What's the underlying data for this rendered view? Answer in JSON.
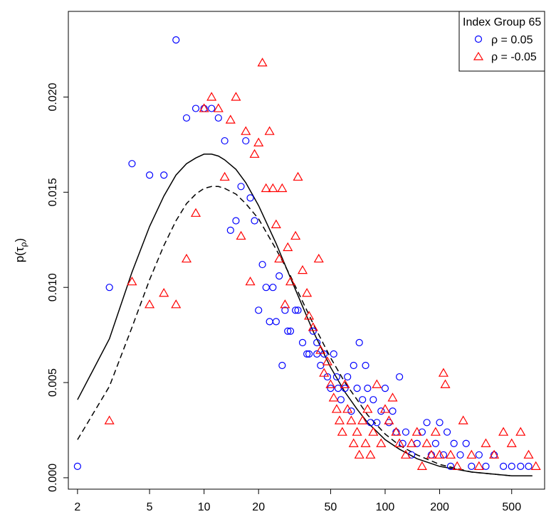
{
  "chart_data": {
    "type": "scatter",
    "title": "",
    "xlabel": "",
    "ylabel": "p(τ_ρ)",
    "x_scale": "log",
    "xlim": [
      1.78,
      760
    ],
    "ylim": [
      -0.0006,
      0.0245
    ],
    "x_ticks": [
      2,
      5,
      10,
      20,
      50,
      100,
      200,
      500
    ],
    "x_tick_labels": [
      "2",
      "5",
      "10",
      "20",
      "50",
      "100",
      "200",
      "500"
    ],
    "y_ticks": [
      0.0,
      0.005,
      0.01,
      0.015,
      0.02
    ],
    "y_tick_labels": [
      "0.000",
      "0.005",
      "0.010",
      "0.015",
      "0.020"
    ],
    "grid": false,
    "legend": {
      "title": "Index Group 65",
      "placement": "top-right",
      "entries": [
        {
          "label": "ρ = 0.05",
          "marker": "circle",
          "color": "#0000ff"
        },
        {
          "label": "ρ = -0.05",
          "marker": "triangle",
          "color": "#ff0000"
        }
      ]
    },
    "series": [
      {
        "name": "ρ = 0.05",
        "marker": "circle",
        "color": "#0000ff",
        "points": [
          [
            2,
            0.0006
          ],
          [
            3,
            0.01
          ],
          [
            4,
            0.0165
          ],
          [
            5,
            0.0159
          ],
          [
            6,
            0.0159
          ],
          [
            7,
            0.023
          ],
          [
            8,
            0.0189
          ],
          [
            9,
            0.0194
          ],
          [
            10,
            0.0194
          ],
          [
            11,
            0.0194
          ],
          [
            12,
            0.0189
          ],
          [
            13,
            0.0177
          ],
          [
            14,
            0.013
          ],
          [
            15,
            0.0135
          ],
          [
            16,
            0.0153
          ],
          [
            17,
            0.0177
          ],
          [
            18,
            0.0147
          ],
          [
            19,
            0.0135
          ],
          [
            20,
            0.0088
          ],
          [
            21,
            0.0112
          ],
          [
            22,
            0.01
          ],
          [
            23,
            0.0082
          ],
          [
            24,
            0.01
          ],
          [
            25,
            0.0082
          ],
          [
            26,
            0.0106
          ],
          [
            27,
            0.0059
          ],
          [
            28,
            0.0088
          ],
          [
            29,
            0.0077
          ],
          [
            30,
            0.0077
          ],
          [
            32,
            0.0088
          ],
          [
            33,
            0.0088
          ],
          [
            35,
            0.0071
          ],
          [
            37,
            0.0065
          ],
          [
            38,
            0.0065
          ],
          [
            40,
            0.0077
          ],
          [
            42,
            0.0071
          ],
          [
            42,
            0.0065
          ],
          [
            44,
            0.0059
          ],
          [
            46,
            0.0065
          ],
          [
            48,
            0.0053
          ],
          [
            50,
            0.0047
          ],
          [
            52,
            0.0065
          ],
          [
            54,
            0.0053
          ],
          [
            55,
            0.0047
          ],
          [
            57,
            0.0041
          ],
          [
            60,
            0.0047
          ],
          [
            62,
            0.0053
          ],
          [
            65,
            0.0035
          ],
          [
            67,
            0.0059
          ],
          [
            70,
            0.0047
          ],
          [
            72,
            0.0071
          ],
          [
            75,
            0.0041
          ],
          [
            78,
            0.0059
          ],
          [
            80,
            0.0047
          ],
          [
            83,
            0.0029
          ],
          [
            86,
            0.0041
          ],
          [
            90,
            0.0029
          ],
          [
            95,
            0.0035
          ],
          [
            100,
            0.0047
          ],
          [
            105,
            0.0029
          ],
          [
            110,
            0.0035
          ],
          [
            115,
            0.0024
          ],
          [
            120,
            0.0053
          ],
          [
            125,
            0.0018
          ],
          [
            130,
            0.0024
          ],
          [
            140,
            0.0012
          ],
          [
            150,
            0.0018
          ],
          [
            160,
            0.0024
          ],
          [
            170,
            0.0029
          ],
          [
            180,
            0.0012
          ],
          [
            190,
            0.0018
          ],
          [
            200,
            0.0029
          ],
          [
            210,
            0.0012
          ],
          [
            220,
            0.0024
          ],
          [
            230,
            0.0006
          ],
          [
            240,
            0.0018
          ],
          [
            260,
            0.0012
          ],
          [
            280,
            0.0018
          ],
          [
            300,
            0.0006
          ],
          [
            330,
            0.0012
          ],
          [
            360,
            0.0006
          ],
          [
            400,
            0.0012
          ],
          [
            450,
            0.0006
          ],
          [
            500,
            0.0006
          ],
          [
            560,
            0.0006
          ],
          [
            620,
            0.0006
          ]
        ]
      },
      {
        "name": "ρ = -0.05",
        "marker": "triangle",
        "color": "#ff0000",
        "points": [
          [
            3,
            0.003
          ],
          [
            4,
            0.0103
          ],
          [
            5,
            0.0091
          ],
          [
            6,
            0.0097
          ],
          [
            7,
            0.0091
          ],
          [
            8,
            0.0115
          ],
          [
            9,
            0.0139
          ],
          [
            10,
            0.0194
          ],
          [
            11,
            0.02
          ],
          [
            12,
            0.0194
          ],
          [
            13,
            0.0158
          ],
          [
            14,
            0.0188
          ],
          [
            15,
            0.02
          ],
          [
            16,
            0.0127
          ],
          [
            17,
            0.0182
          ],
          [
            18,
            0.0103
          ],
          [
            19,
            0.017
          ],
          [
            20,
            0.0176
          ],
          [
            21,
            0.0218
          ],
          [
            22,
            0.0152
          ],
          [
            23,
            0.0182
          ],
          [
            24,
            0.0152
          ],
          [
            25,
            0.0133
          ],
          [
            26,
            0.0115
          ],
          [
            27,
            0.0152
          ],
          [
            28,
            0.0091
          ],
          [
            29,
            0.0121
          ],
          [
            30,
            0.0103
          ],
          [
            32,
            0.0127
          ],
          [
            33,
            0.0158
          ],
          [
            35,
            0.0109
          ],
          [
            37,
            0.0097
          ],
          [
            38,
            0.0085
          ],
          [
            40,
            0.0079
          ],
          [
            43,
            0.0115
          ],
          [
            44,
            0.0067
          ],
          [
            46,
            0.0055
          ],
          [
            48,
            0.0061
          ],
          [
            50,
            0.0049
          ],
          [
            52,
            0.0042
          ],
          [
            54,
            0.0036
          ],
          [
            56,
            0.003
          ],
          [
            58,
            0.0024
          ],
          [
            60,
            0.0049
          ],
          [
            62,
            0.0036
          ],
          [
            65,
            0.003
          ],
          [
            67,
            0.0018
          ],
          [
            70,
            0.0024
          ],
          [
            72,
            0.0012
          ],
          [
            75,
            0.003
          ],
          [
            78,
            0.0018
          ],
          [
            80,
            0.0036
          ],
          [
            83,
            0.0012
          ],
          [
            86,
            0.0024
          ],
          [
            90,
            0.0049
          ],
          [
            95,
            0.0018
          ],
          [
            100,
            0.0036
          ],
          [
            105,
            0.003
          ],
          [
            110,
            0.0042
          ],
          [
            115,
            0.0024
          ],
          [
            120,
            0.0018
          ],
          [
            130,
            0.0012
          ],
          [
            140,
            0.0018
          ],
          [
            150,
            0.0024
          ],
          [
            160,
            0.0006
          ],
          [
            170,
            0.0018
          ],
          [
            180,
            0.0012
          ],
          [
            190,
            0.0024
          ],
          [
            200,
            0.0012
          ],
          [
            210,
            0.0055
          ],
          [
            215,
            0.0049
          ],
          [
            230,
            0.0012
          ],
          [
            250,
            0.0006
          ],
          [
            270,
            0.003
          ],
          [
            300,
            0.0012
          ],
          [
            330,
            0.0006
          ],
          [
            360,
            0.0018
          ],
          [
            400,
            0.0012
          ],
          [
            450,
            0.0024
          ],
          [
            500,
            0.0018
          ],
          [
            560,
            0.0024
          ],
          [
            620,
            0.0012
          ],
          [
            680,
            0.0006
          ]
        ]
      }
    ],
    "curves": [
      {
        "linestyle": "solid",
        "color": "#000000",
        "points": [
          [
            2,
            0.0041
          ],
          [
            3,
            0.0073
          ],
          [
            4,
            0.0108
          ],
          [
            5,
            0.0132
          ],
          [
            6,
            0.0148
          ],
          [
            7,
            0.0159
          ],
          [
            8,
            0.0165
          ],
          [
            9,
            0.0168
          ],
          [
            10,
            0.017
          ],
          [
            11,
            0.017
          ],
          [
            12,
            0.0169
          ],
          [
            13,
            0.0167
          ],
          [
            15,
            0.0162
          ],
          [
            17,
            0.0155
          ],
          [
            20,
            0.0143
          ],
          [
            25,
            0.0123
          ],
          [
            30,
            0.0105
          ],
          [
            40,
            0.0077
          ],
          [
            50,
            0.0058
          ],
          [
            60,
            0.0045
          ],
          [
            70,
            0.0036
          ],
          [
            80,
            0.0029
          ],
          [
            100,
            0.002
          ],
          [
            120,
            0.0015
          ],
          [
            150,
            0.001
          ],
          [
            200,
            0.0006
          ],
          [
            300,
            0.0003
          ],
          [
            500,
            0.0001
          ],
          [
            650,
            0.0001
          ]
        ]
      },
      {
        "linestyle": "dashed",
        "color": "#000000",
        "points": [
          [
            2,
            0.002
          ],
          [
            3,
            0.0048
          ],
          [
            4,
            0.0079
          ],
          [
            5,
            0.0104
          ],
          [
            6,
            0.0122
          ],
          [
            7,
            0.0135
          ],
          [
            8,
            0.0144
          ],
          [
            9,
            0.0149
          ],
          [
            10,
            0.0152
          ],
          [
            11,
            0.0153
          ],
          [
            12,
            0.0153
          ],
          [
            13,
            0.0152
          ],
          [
            15,
            0.0149
          ],
          [
            17,
            0.0144
          ],
          [
            20,
            0.0136
          ],
          [
            25,
            0.012
          ],
          [
            30,
            0.0106
          ],
          [
            40,
            0.0081
          ],
          [
            50,
            0.0063
          ],
          [
            60,
            0.005
          ],
          [
            70,
            0.0041
          ],
          [
            80,
            0.0033
          ],
          [
            100,
            0.0023
          ],
          [
            120,
            0.0017
          ],
          [
            150,
            0.0012
          ],
          [
            200,
            0.0007
          ],
          [
            300,
            0.0003
          ],
          [
            500,
            0.0001
          ],
          [
            650,
            0.0001
          ]
        ]
      }
    ]
  }
}
